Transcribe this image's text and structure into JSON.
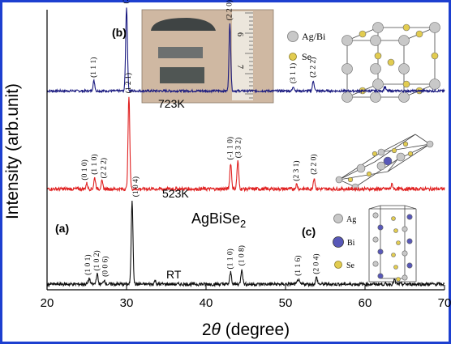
{
  "chart_data": {
    "type": "line",
    "xlabel_prefix": "2",
    "xlabel_theta": "θ",
    "xlabel_suffix": " (degree)",
    "ylabel": "Intensity (arb.unit)",
    "xlim": [
      20,
      70
    ],
    "xticks": [
      "20",
      "30",
      "40",
      "50",
      "60",
      "70"
    ],
    "compound": {
      "base": "AgBiSe",
      "subscript": "2"
    },
    "series": [
      {
        "name": "723K",
        "color": "#1a1a80",
        "offset": 0.71,
        "scale": 0.3,
        "noise": 0.004,
        "peaks": [
          {
            "x": 25.9,
            "h": 0.12
          },
          {
            "x": 30.0,
            "h": 1.0
          },
          {
            "x": 43.0,
            "h": 0.8
          },
          {
            "x": 51.0,
            "h": 0.05
          },
          {
            "x": 53.5,
            "h": 0.12
          },
          {
            "x": 62.5,
            "h": 0.05
          }
        ],
        "hkl": [
          {
            "label": "(1 1 1)",
            "x": 25.9,
            "h": 0.12
          },
          {
            "label": "(2 0 0)",
            "x": 30.0,
            "h": 1.0
          },
          {
            "label": "(2 2 0)",
            "x": 43.0,
            "h": 0.8
          },
          {
            "label": "(3 1 1)",
            "x": 51.0,
            "h": 0.05
          },
          {
            "label": "(2 2 2)",
            "x": 53.5,
            "h": 0.12
          }
        ]
      },
      {
        "name": "523K",
        "color": "#e02020",
        "offset": 0.36,
        "scale": 0.33,
        "noise": 0.006,
        "peaks": [
          {
            "x": 25.0,
            "h": 0.06
          },
          {
            "x": 26.0,
            "h": 0.12
          },
          {
            "x": 26.9,
            "h": 0.08
          },
          {
            "x": 30.3,
            "h": 1.0
          },
          {
            "x": 43.1,
            "h": 0.28
          },
          {
            "x": 44.0,
            "h": 0.3
          },
          {
            "x": 51.4,
            "h": 0.05
          },
          {
            "x": 53.6,
            "h": 0.12
          },
          {
            "x": 63.4,
            "h": 0.05
          }
        ],
        "hkl": [
          {
            "label": "(0 1 0)",
            "x": 24.8,
            "h": 0.06
          },
          {
            "label": "(1 1 0)",
            "x": 26.0,
            "h": 0.12
          },
          {
            "label": "(2 2 2)",
            "x": 27.2,
            "h": 0.08
          },
          {
            "label": "(1 2 1)",
            "x": 30.3,
            "h": 1.0
          },
          {
            "label": "(-1 1 0)",
            "x": 43.1,
            "h": 0.28
          },
          {
            "label": "(3 3 2)",
            "x": 44.1,
            "h": 0.3
          },
          {
            "label": "(2 3 1)",
            "x": 51.4,
            "h": 0.05
          },
          {
            "label": "(2 2 0)",
            "x": 53.6,
            "h": 0.12
          }
        ]
      },
      {
        "name": "RT",
        "color": "#111111",
        "offset": 0.02,
        "scale": 0.3,
        "noise": 0.006,
        "peaks": [
          {
            "x": 25.3,
            "h": 0.07
          },
          {
            "x": 26.3,
            "h": 0.12
          },
          {
            "x": 27.2,
            "h": 0.05
          },
          {
            "x": 30.7,
            "h": 1.0
          },
          {
            "x": 33.6,
            "h": 0.04
          },
          {
            "x": 43.1,
            "h": 0.14
          },
          {
            "x": 44.5,
            "h": 0.18
          },
          {
            "x": 51.6,
            "h": 0.06
          },
          {
            "x": 53.9,
            "h": 0.08
          },
          {
            "x": 63.7,
            "h": 0.05
          }
        ],
        "hkl": [
          {
            "label": "(1 0 1)",
            "x": 25.2,
            "h": 0.07
          },
          {
            "label": "(1 0 2)",
            "x": 26.3,
            "h": 0.12
          },
          {
            "label": "(0 0 6)",
            "x": 27.4,
            "h": 0.05
          },
          {
            "label": "(1 0 4)",
            "x": 31.2,
            "h": 1.0
          },
          {
            "label": "(1 1 0)",
            "x": 43.1,
            "h": 0.14
          },
          {
            "label": "(1 0 8)",
            "x": 44.5,
            "h": 0.18
          },
          {
            "label": "(1 1 6)",
            "x": 51.6,
            "h": 0.06
          },
          {
            "label": "(2 0 4)",
            "x": 53.9,
            "h": 0.08
          }
        ]
      }
    ],
    "panels": [
      "(a)",
      "(b)",
      "(c)"
    ],
    "legend_b": [
      "Ag/Bi",
      "Se"
    ],
    "legend_c": [
      "Ag",
      "Bi",
      "Se"
    ],
    "colors": {
      "frame": "#1d3fd0",
      "ag": "#c8c8c8",
      "bi": "#5858b8",
      "se": "#e2cc50"
    }
  }
}
